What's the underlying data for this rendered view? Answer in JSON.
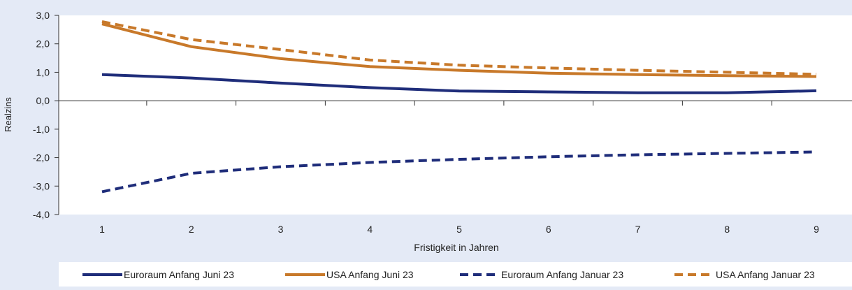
{
  "chart_data": {
    "type": "line",
    "title": "",
    "xlabel": "Fristigkeit in Jahren",
    "ylabel": "Realzins",
    "categories": [
      "1",
      "2",
      "3",
      "4",
      "5",
      "6",
      "7",
      "8",
      "9"
    ],
    "y_ticks": [
      "3,0",
      "2,0",
      "1,0",
      "0,0",
      "-1,0",
      "-2,0",
      "-3,0",
      "-4,0"
    ],
    "ylim": [
      -4.0,
      3.0
    ],
    "grid": false,
    "legend_position": "bottom",
    "series": [
      {
        "name": "Euroraum Anfang Juni 23",
        "color": "#1f2d7a",
        "dash": "solid",
        "values": [
          0.92,
          0.8,
          0.62,
          0.46,
          0.34,
          0.31,
          0.28,
          0.28,
          0.35
        ]
      },
      {
        "name": "USA Anfang Juni 23",
        "color": "#c8792a",
        "dash": "solid",
        "values": [
          2.7,
          1.9,
          1.48,
          1.2,
          1.07,
          0.97,
          0.92,
          0.88,
          0.85
        ]
      },
      {
        "name": "Euroraum Anfang Januar 23",
        "color": "#1f2d7a",
        "dash": "dashed",
        "values": [
          -3.2,
          -2.55,
          -2.32,
          -2.17,
          -2.06,
          -1.97,
          -1.9,
          -1.85,
          -1.8
        ]
      },
      {
        "name": "USA Anfang Januar 23",
        "color": "#c8792a",
        "dash": "dashed",
        "values": [
          2.78,
          2.15,
          1.8,
          1.43,
          1.25,
          1.15,
          1.07,
          1.0,
          0.93
        ]
      }
    ]
  }
}
